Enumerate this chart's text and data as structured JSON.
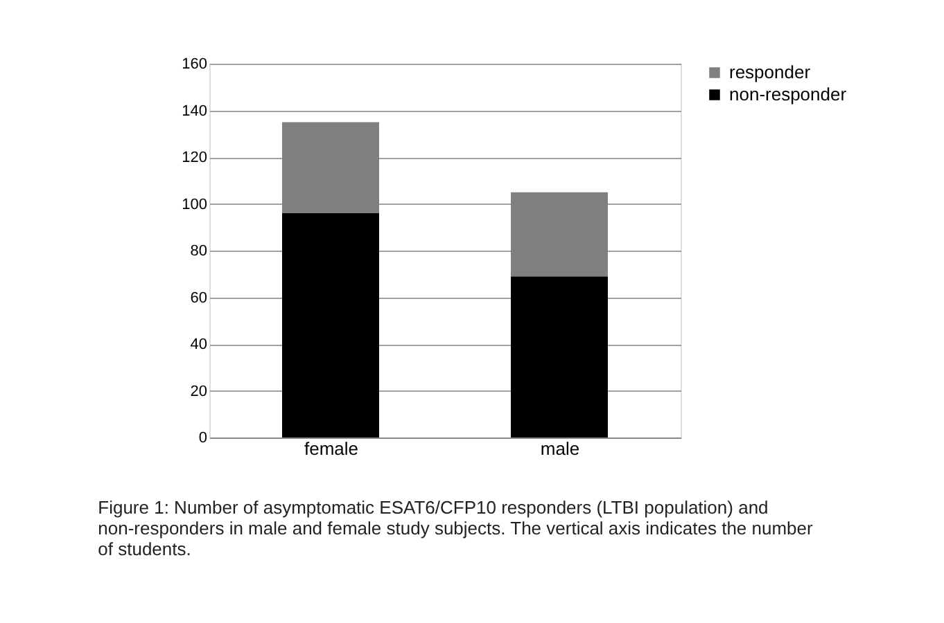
{
  "chart_data": {
    "type": "bar",
    "stacked": true,
    "categories": [
      "female",
      "male"
    ],
    "series": [
      {
        "name": "non-responder",
        "color": "#000000",
        "values": [
          96,
          69
        ]
      },
      {
        "name": "responder",
        "color": "#808080",
        "values": [
          39,
          36
        ]
      }
    ],
    "ylim": [
      0,
      160
    ],
    "yticks": [
      0,
      20,
      40,
      60,
      80,
      100,
      120,
      140,
      160
    ],
    "grid": "y",
    "legend": "right",
    "annotations": [
      "Figure 1: Number of asymptomatic ESAT6/CFP10 responders (LTBI population) and non-responders in male and female study subjects. The vertical axis indicates the number of students."
    ]
  }
}
